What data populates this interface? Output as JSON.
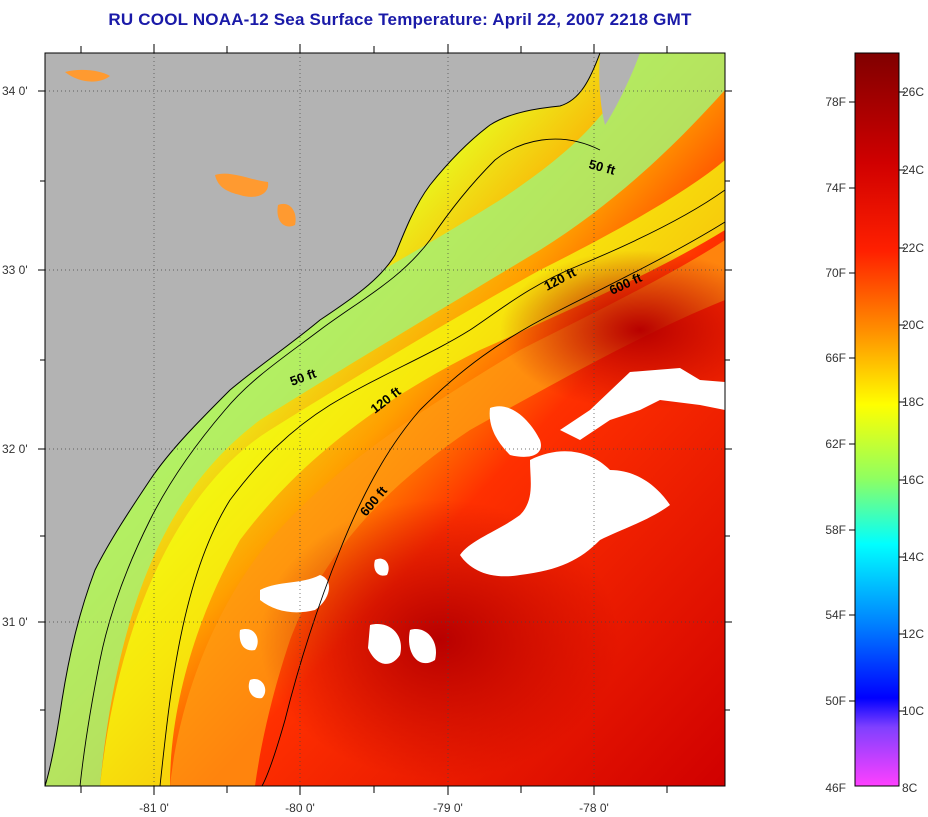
{
  "title": "RU COOL  NOAA-12  Sea Surface Temperature:  April 22, 2007 2218 GMT",
  "map": {
    "lat_labels": [
      "34 0'",
      "33 0'",
      "32 0'",
      "31 0'"
    ],
    "lon_labels": [
      "-81 0'",
      "-80 0'",
      "-79 0'",
      "-78 0'"
    ],
    "contour_labels": [
      "50 ft",
      "50 ft",
      "120 ft",
      "120 ft",
      "600 ft",
      "600 ft"
    ],
    "land_color": "#b3b3b3",
    "cloud_color": "#ffffff"
  },
  "colorbar": {
    "fahrenheit_labels": [
      "78F",
      "74F",
      "70F",
      "66F",
      "62F",
      "58F",
      "54F",
      "50F",
      "46F"
    ],
    "celsius_labels": [
      "26C",
      "24C",
      "22C",
      "20C",
      "18C",
      "16C",
      "14C",
      "12C",
      "10C",
      "8C"
    ],
    "colors": [
      "#800000",
      "#c00000",
      "#ff0000",
      "#ff8000",
      "#ffff00",
      "#80ff80",
      "#00ffff",
      "#0080ff",
      "#0000ff",
      "#ff40ff"
    ]
  }
}
